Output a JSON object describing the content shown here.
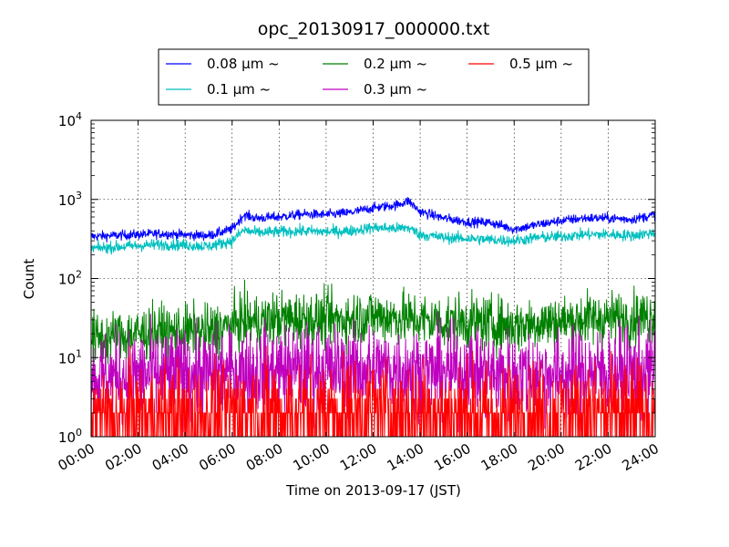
{
  "chart_data": {
    "type": "line",
    "title": "opc_20130917_000000.txt",
    "xlabel": "Time on 2013-09-17 (JST)",
    "ylabel": "Count",
    "yscale": "log",
    "xlim": [
      "00:00",
      "24:00"
    ],
    "ylim": [
      1,
      10000
    ],
    "grid": true,
    "legend_position": "top-center",
    "x_ticks": [
      "00:00",
      "02:00",
      "04:00",
      "06:00",
      "08:00",
      "10:00",
      "12:00",
      "14:00",
      "16:00",
      "18:00",
      "20:00",
      "22:00",
      "24:00"
    ],
    "y_ticks": [
      {
        "value": 1,
        "base": "10",
        "exp": "0"
      },
      {
        "value": 10,
        "base": "10",
        "exp": "1"
      },
      {
        "value": 100,
        "base": "10",
        "exp": "2"
      },
      {
        "value": 1000,
        "base": "10",
        "exp": "3"
      },
      {
        "value": 10000,
        "base": "10",
        "exp": "4"
      }
    ],
    "x": [
      "00:00",
      "01:00",
      "02:00",
      "03:00",
      "04:00",
      "05:00",
      "06:00",
      "06:30",
      "07:00",
      "08:00",
      "09:00",
      "10:00",
      "11:00",
      "12:00",
      "13:00",
      "13:30",
      "14:00",
      "15:00",
      "16:00",
      "17:00",
      "18:00",
      "19:00",
      "20:00",
      "21:00",
      "22:00",
      "23:00",
      "24:00"
    ],
    "series": [
      {
        "name": "0.08 μm ~",
        "color": "#0000ff",
        "values": [
          340,
          350,
          360,
          370,
          355,
          350,
          420,
          640,
          580,
          600,
          650,
          640,
          680,
          780,
          850,
          960,
          700,
          580,
          520,
          510,
          420,
          480,
          540,
          580,
          580,
          560,
          640
        ],
        "noise": 0.03
      },
      {
        "name": "0.1 μm ~",
        "color": "#00bfbf",
        "values": [
          240,
          250,
          260,
          270,
          265,
          255,
          300,
          410,
          380,
          390,
          400,
          390,
          400,
          440,
          430,
          440,
          360,
          330,
          320,
          310,
          300,
          330,
          340,
          360,
          360,
          350,
          380
        ],
        "noise": 0.035
      },
      {
        "name": "0.2 μm ~",
        "color": "#008000",
        "values": [
          17,
          18,
          20,
          21,
          21,
          21,
          25,
          30,
          28,
          31,
          31,
          30,
          31,
          34,
          32,
          31,
          30,
          28,
          28,
          27,
          25,
          28,
          28,
          31,
          31,
          31,
          34
        ],
        "noise": 0.17
      },
      {
        "name": "0.3 μm ~",
        "color": "#bf00bf",
        "values": [
          5.5,
          5.7,
          6,
          6.2,
          6.2,
          6.2,
          6.5,
          6.8,
          6.8,
          7,
          7,
          7,
          7,
          7,
          7,
          7,
          6.8,
          6.5,
          6.5,
          6.2,
          6,
          6.2,
          6.2,
          6.5,
          6.5,
          6.5,
          6.8
        ],
        "noise": 0.28
      },
      {
        "name": "0.5 μm ~",
        "color": "#ff0000",
        "values": [
          1.6,
          1.7,
          1.8,
          1.8,
          1.8,
          1.8,
          1.9,
          2,
          2,
          2,
          2,
          2,
          2,
          2.1,
          2,
          2,
          2,
          1.9,
          1.9,
          1.8,
          1.8,
          1.8,
          1.8,
          1.9,
          1.9,
          1.9,
          2
        ],
        "noise": 0.33,
        "discrete": true
      }
    ]
  }
}
